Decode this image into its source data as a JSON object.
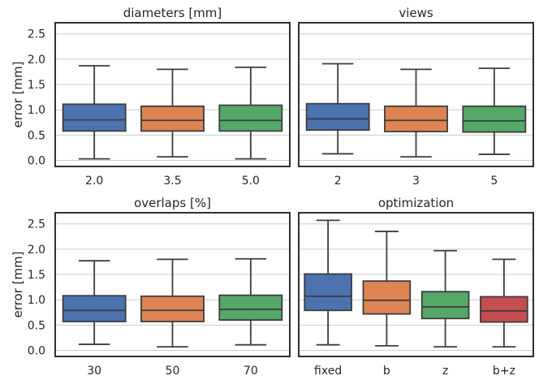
{
  "chart_data": [
    {
      "type": "box",
      "title": "diameters [mm]",
      "xlabel": "",
      "ylabel": "error [mm]",
      "ylim": [
        -0.12,
        2.72
      ],
      "yticks": [
        "0.0",
        "0.5",
        "1.0",
        "1.5",
        "2.0",
        "2.5"
      ],
      "grid": true,
      "categories": [
        "2.0",
        "3.5",
        "5.0"
      ],
      "boxes": [
        {
          "whisker_low": 0.03,
          "q1": 0.58,
          "median": 0.8,
          "q3": 1.11,
          "whisker_high": 1.87,
          "color": "#4c72b0"
        },
        {
          "whisker_low": 0.07,
          "q1": 0.58,
          "median": 0.79,
          "q3": 1.07,
          "whisker_high": 1.8,
          "color": "#dd8452"
        },
        {
          "whisker_low": 0.03,
          "q1": 0.58,
          "median": 0.79,
          "q3": 1.09,
          "whisker_high": 1.84,
          "color": "#55a868"
        }
      ]
    },
    {
      "type": "box",
      "title": "views",
      "xlabel": "",
      "ylabel": "",
      "ylim": [
        -0.12,
        2.72
      ],
      "yticks": [],
      "grid": true,
      "categories": [
        "2",
        "3",
        "5"
      ],
      "boxes": [
        {
          "whisker_low": 0.13,
          "q1": 0.6,
          "median": 0.82,
          "q3": 1.12,
          "whisker_high": 1.91,
          "color": "#4c72b0"
        },
        {
          "whisker_low": 0.07,
          "q1": 0.57,
          "median": 0.79,
          "q3": 1.07,
          "whisker_high": 1.8,
          "color": "#dd8452"
        },
        {
          "whisker_low": 0.12,
          "q1": 0.56,
          "median": 0.78,
          "q3": 1.07,
          "whisker_high": 1.82,
          "color": "#55a868"
        }
      ]
    },
    {
      "type": "box",
      "title": "overlaps [%]",
      "xlabel": "",
      "ylabel": "error [mm]",
      "ylim": [
        -0.12,
        2.72
      ],
      "yticks": [
        "0.0",
        "0.5",
        "1.0",
        "1.5",
        "2.0",
        "2.5"
      ],
      "grid": true,
      "categories": [
        "30",
        "50",
        "70"
      ],
      "boxes": [
        {
          "whisker_low": 0.12,
          "q1": 0.57,
          "median": 0.79,
          "q3": 1.08,
          "whisker_high": 1.77,
          "color": "#4c72b0"
        },
        {
          "whisker_low": 0.07,
          "q1": 0.57,
          "median": 0.79,
          "q3": 1.07,
          "whisker_high": 1.8,
          "color": "#dd8452"
        },
        {
          "whisker_low": 0.11,
          "q1": 0.6,
          "median": 0.81,
          "q3": 1.09,
          "whisker_high": 1.81,
          "color": "#55a868"
        }
      ]
    },
    {
      "type": "box",
      "title": "optimization",
      "xlabel": "",
      "ylabel": "",
      "ylim": [
        -0.12,
        2.72
      ],
      "yticks": [],
      "grid": true,
      "categories": [
        "fixed",
        "b",
        "z",
        "b+z"
      ],
      "boxes": [
        {
          "whisker_low": 0.11,
          "q1": 0.79,
          "median": 1.07,
          "q3": 1.51,
          "whisker_high": 2.57,
          "color": "#4c72b0"
        },
        {
          "whisker_low": 0.09,
          "q1": 0.72,
          "median": 0.99,
          "q3": 1.37,
          "whisker_high": 2.35,
          "color": "#dd8452"
        },
        {
          "whisker_low": 0.07,
          "q1": 0.63,
          "median": 0.86,
          "q3": 1.16,
          "whisker_high": 1.97,
          "color": "#55a868"
        },
        {
          "whisker_low": 0.07,
          "q1": 0.56,
          "median": 0.78,
          "q3": 1.06,
          "whisker_high": 1.8,
          "color": "#c44e52"
        }
      ]
    }
  ]
}
